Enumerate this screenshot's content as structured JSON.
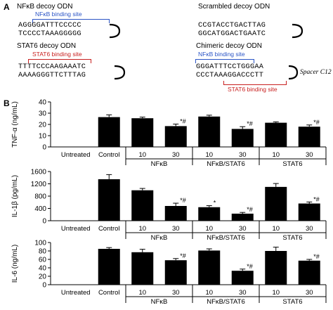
{
  "panel_a": {
    "letter": "A",
    "nfkb": {
      "title": "NFκB decoy ODN",
      "site": "NFκB binding site",
      "seq1": "AGGGGATTTCCCCC",
      "seq2": "TCCCCTAAAGGGGG"
    },
    "scrambled": {
      "title": "Scrambled decoy ODN",
      "seq1": "CCGTACCTGACTTAG",
      "seq2": "GGCATGGACTGAATC"
    },
    "stat6": {
      "title": "STAT6 decoy ODN",
      "site": "STAT6 binding site",
      "seq1": "TTTTCCCAAGAAATC",
      "seq2": "AAAAGGGTTCTTTAG"
    },
    "chimeric": {
      "title": "Chimeric decoy ODN",
      "site_top": "NFκB binding site",
      "site_bottom": "STAT6 binding site",
      "seq1": "GGGATTTCCTGGGAA",
      "seq2": "CCCTAAAGGACCCTT",
      "spacer": "Spacer C12"
    }
  },
  "panel_b": {
    "letter": "B"
  },
  "colors": {
    "bar": "#000000",
    "blue_site": "#2b55c6",
    "red_site": "#c8201f"
  },
  "chart_data": [
    {
      "type": "bar",
      "ylabel": "TNF-α (ng/mL)",
      "ylim": [
        0,
        40
      ],
      "yticks": [
        "0",
        "10",
        "20",
        "30",
        "40"
      ],
      "categories": [
        "Untreated",
        "Control",
        "10",
        "30",
        "10",
        "30",
        "10",
        "30"
      ],
      "values": [
        0,
        26.5,
        25.5,
        18.5,
        27,
        16,
        21.5,
        18
      ],
      "errors": [
        0,
        2,
        1,
        1.8,
        1.2,
        2,
        0.8,
        1.5
      ],
      "annotations": [
        "",
        "",
        "",
        "*#",
        "",
        "*#",
        "",
        "*#"
      ],
      "groups": [
        "NFκB",
        "NFκB/STAT6",
        "STAT6"
      ]
    },
    {
      "type": "bar",
      "ylabel": "IL-1β (pg/mL)",
      "ylim": [
        0,
        1600
      ],
      "yticks": [
        "0",
        "400",
        "800",
        "1200",
        "1600"
      ],
      "categories": [
        "Untreated",
        "Control",
        "10",
        "30",
        "10",
        "30",
        "10",
        "30"
      ],
      "values": [
        0,
        1350,
        990,
        480,
        440,
        230,
        1100,
        560
      ],
      "errors": [
        0,
        150,
        60,
        90,
        50,
        40,
        110,
        50
      ],
      "annotations": [
        "",
        "",
        "",
        "*#",
        "*",
        "*#",
        "",
        "*#"
      ],
      "groups": [
        "NFκB",
        "NFκB/STAT6",
        "STAT6"
      ]
    },
    {
      "type": "bar",
      "ylabel": "IL-6 (ng/mL)",
      "ylim": [
        0,
        100
      ],
      "yticks": [
        "0",
        "20",
        "40",
        "60",
        "80",
        "100"
      ],
      "categories": [
        "Untreated",
        "Control",
        "10",
        "30",
        "10",
        "30",
        "10",
        "30"
      ],
      "values": [
        0,
        85,
        77,
        58,
        81,
        33,
        80,
        57
      ],
      "errors": [
        0,
        3,
        7,
        4,
        4,
        4,
        9,
        3
      ],
      "annotations": [
        "",
        "",
        "",
        "*#",
        "",
        "*#",
        "",
        "*#"
      ],
      "groups": [
        "NFκB",
        "NFκB/STAT6",
        "STAT6"
      ]
    }
  ]
}
